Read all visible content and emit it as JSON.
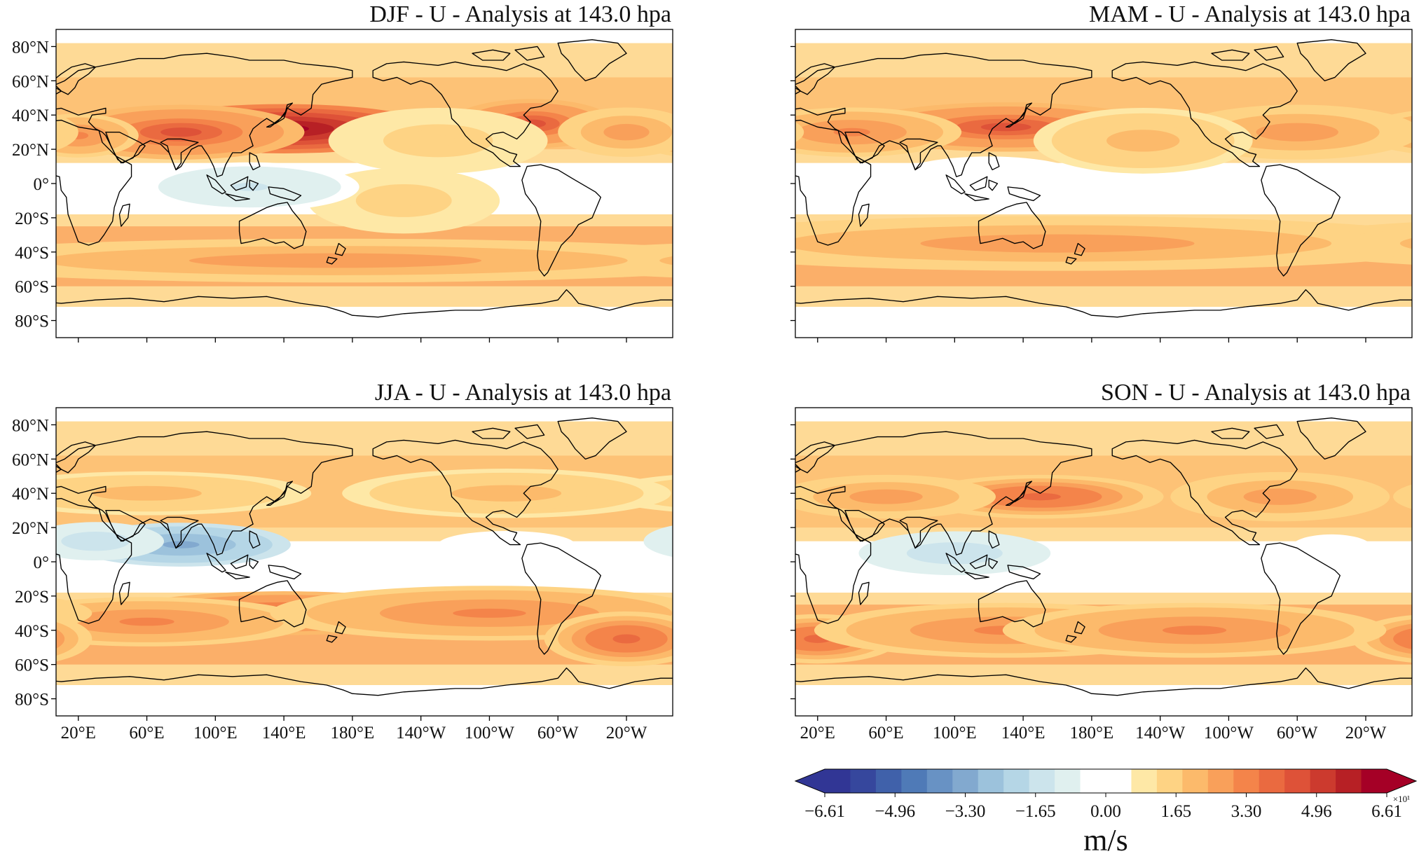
{
  "figure": {
    "panels": [
      {
        "id": "djf",
        "title": "DJF - U - Analysis at 143.0 hpa",
        "lat_labels": [
          "80°N",
          "60°N",
          "40°N",
          "20°N",
          "0°",
          "20°S",
          "40°S",
          "60°S",
          "80°S"
        ],
        "lon_labels": [],
        "features": [
          {
            "kind": "jet",
            "lon": 140,
            "lat": 32,
            "dlon": 55,
            "dlat": 9,
            "val": 6.6
          },
          {
            "kind": "jet",
            "lon": 80,
            "lat": 30,
            "dlon": 45,
            "dlat": 10,
            "val": 4.4
          },
          {
            "kind": "jet",
            "lon": 20,
            "lat": 28,
            "dlon": 22,
            "dlat": 8,
            "val": 3.3
          },
          {
            "kind": "jet",
            "lon": -75,
            "lat": 35,
            "dlon": 30,
            "dlat": 9,
            "val": 4.4
          },
          {
            "kind": "jet",
            "lon": -20,
            "lat": 30,
            "dlon": 25,
            "dlat": 9,
            "val": 2.8
          },
          {
            "kind": "jet",
            "lon": -130,
            "lat": 25,
            "dlon": 40,
            "dlat": 12,
            "val": 1.7
          },
          {
            "kind": "jet",
            "lon": 170,
            "lat": -45,
            "dlon": 160,
            "dlat": 8,
            "val": 2.8
          },
          {
            "kind": "jet",
            "lon": -150,
            "lat": -10,
            "dlon": 35,
            "dlat": 12,
            "val": 1.7
          },
          {
            "kind": "east",
            "lon": 120,
            "lat": -2,
            "dlon": 40,
            "dlat": 9,
            "val": -1.3
          },
          {
            "kind": "east",
            "lon": 30,
            "lat": -3,
            "dlon": 20,
            "dlat": 7,
            "val": -0.6
          },
          {
            "kind": "east",
            "lon": -20,
            "lat": -5,
            "dlon": 15,
            "dlat": 6,
            "val": -0.4
          }
        ]
      },
      {
        "id": "mam",
        "title": "MAM - U - Analysis at 143.0 hpa",
        "lat_labels": [],
        "lon_labels": [],
        "features": [
          {
            "kind": "jet",
            "lon": 130,
            "lat": 33,
            "dlon": 55,
            "dlat": 9,
            "val": 4.4
          },
          {
            "kind": "jet",
            "lon": 40,
            "lat": 30,
            "dlon": 40,
            "dlat": 9,
            "val": 3.3
          },
          {
            "kind": "jet",
            "lon": -60,
            "lat": 30,
            "dlon": 45,
            "dlat": 10,
            "val": 2.8
          },
          {
            "kind": "jet",
            "lon": -150,
            "lat": 25,
            "dlon": 40,
            "dlat": 12,
            "val": 2.2
          },
          {
            "kind": "jet",
            "lon": 160,
            "lat": -35,
            "dlon": 150,
            "dlat": 10,
            "val": 2.8
          },
          {
            "kind": "east",
            "lon": 120,
            "lat": 3,
            "dlon": 35,
            "dlat": 8,
            "val": -0.6
          }
        ]
      },
      {
        "id": "jja",
        "title": "JJA - U - Analysis at 143.0 hpa",
        "lat_labels": [
          "80°N",
          "60°N",
          "40°N",
          "20°N",
          "0°",
          "20°S",
          "40°S",
          "60°S",
          "80°S"
        ],
        "lon_labels": [
          "20°E",
          "60°E",
          "100°E",
          "140°E",
          "180°E",
          "140°W",
          "100°W",
          "60°W",
          "20°W"
        ],
        "features": [
          {
            "kind": "jet",
            "lon": 140,
            "lat": -30,
            "dlon": 60,
            "dlat": 8,
            "val": 4.4
          },
          {
            "kind": "jet",
            "lon": 60,
            "lat": -35,
            "dlon": 60,
            "dlat": 9,
            "val": 3.3
          },
          {
            "kind": "jet",
            "lon": -100,
            "lat": -30,
            "dlon": 80,
            "dlat": 10,
            "val": 3.3
          },
          {
            "kind": "jet",
            "lon": -20,
            "lat": -45,
            "dlon": 30,
            "dlat": 10,
            "val": 3.9
          },
          {
            "kind": "jet",
            "lon": 60,
            "lat": 40,
            "dlon": 60,
            "dlat": 8,
            "val": 2.2
          },
          {
            "kind": "jet",
            "lon": -90,
            "lat": 40,
            "dlon": 60,
            "dlat": 9,
            "val": 2.2
          },
          {
            "kind": "east",
            "lon": 80,
            "lat": 10,
            "dlon": 40,
            "dlat": 8,
            "val": -3.3
          },
          {
            "kind": "east",
            "lon": 30,
            "lat": 12,
            "dlon": 25,
            "dlat": 7,
            "val": -1.6
          },
          {
            "kind": "east",
            "lon": -90,
            "lat": 10,
            "dlon": 25,
            "dlat": 5,
            "val": -0.6
          }
        ]
      },
      {
        "id": "son",
        "title": "SON - U - Analysis at 143.0 hpa",
        "lat_labels": [],
        "lon_labels": [
          "20°E",
          "60°E",
          "100°E",
          "140°E",
          "180°E",
          "140°W",
          "100°W",
          "60°W",
          "20°W"
        ],
        "features": [
          {
            "kind": "jet",
            "lon": 150,
            "lat": 38,
            "dlon": 45,
            "dlat": 8,
            "val": 3.9
          },
          {
            "kind": "jet",
            "lon": 60,
            "lat": 38,
            "dlon": 40,
            "dlat": 8,
            "val": 2.8
          },
          {
            "kind": "jet",
            "lon": -70,
            "lat": 38,
            "dlon": 40,
            "dlat": 9,
            "val": 2.8
          },
          {
            "kind": "jet",
            "lon": 20,
            "lat": -45,
            "dlon": 30,
            "dlat": 9,
            "val": 3.9
          },
          {
            "kind": "jet",
            "lon": 130,
            "lat": -40,
            "dlon": 70,
            "dlat": 10,
            "val": 3.3
          },
          {
            "kind": "jet",
            "lon": -120,
            "lat": -40,
            "dlon": 70,
            "dlat": 10,
            "val": 3.3
          },
          {
            "kind": "east",
            "lon": 100,
            "lat": 5,
            "dlon": 35,
            "dlat": 8,
            "val": -1.6
          },
          {
            "kind": "east",
            "lon": -40,
            "lat": 8,
            "dlon": 15,
            "dlat": 5,
            "val": -0.6
          }
        ]
      }
    ]
  },
  "colorbar": {
    "tick_labels": [
      "−6.61",
      "−4.96",
      "−3.30",
      "−1.65",
      "0.00",
      "1.65",
      "3.30",
      "4.96",
      "6.61"
    ],
    "exponent_label": "×10¹",
    "units": "m/s",
    "colors": [
      "#313695",
      "#36479d",
      "#4061aa",
      "#4f7ab7",
      "#6892c4",
      "#82a9cf",
      "#9cc2dc",
      "#b5d6e6",
      "#cce4ec",
      "#e0f0ef",
      "#ffffff",
      "#ffffff",
      "#fee8a6",
      "#fed384",
      "#fcba6b",
      "#f9a05a",
      "#f4844a",
      "#ea6a40",
      "#de5238",
      "#cc3a2e",
      "#b72025",
      "#a50026"
    ],
    "under_color": "#313695",
    "over_color": "#a50026"
  }
}
